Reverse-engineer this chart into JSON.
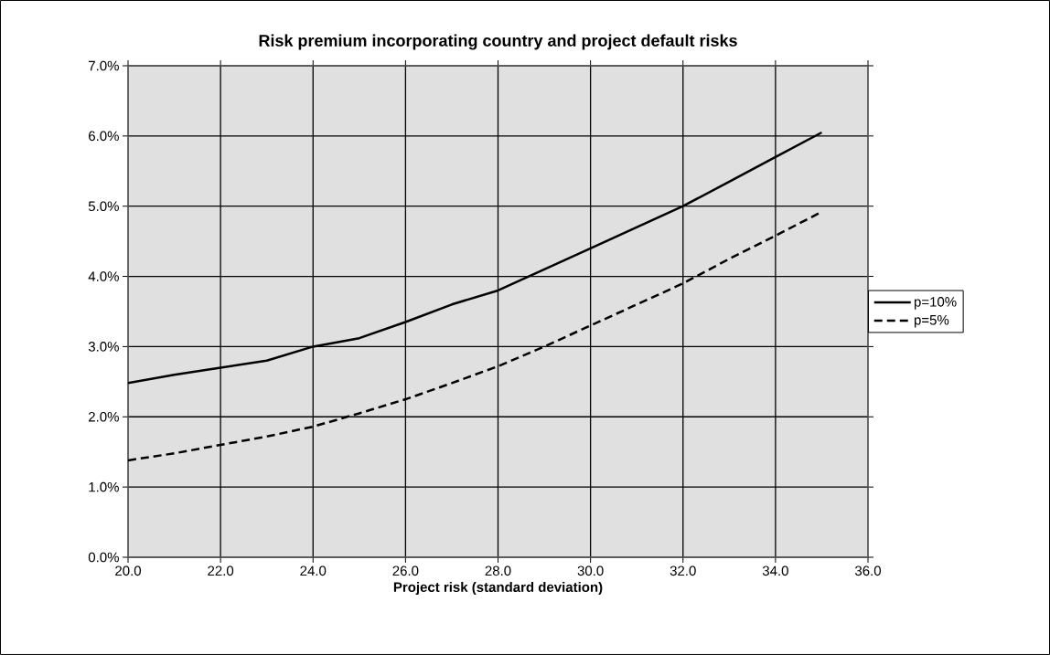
{
  "chart_data": {
    "type": "line",
    "title": "Risk premium incorporating country and project default risks",
    "xlabel": "Project risk (standard deviation)",
    "x": [
      20,
      21,
      22,
      23,
      24,
      25,
      26,
      27,
      28,
      29,
      30,
      31,
      32,
      33,
      34,
      35
    ],
    "series": [
      {
        "name": "p=10%",
        "color": "#000000",
        "line_style": "solid",
        "values": [
          2.48,
          2.6,
          2.7,
          2.8,
          3.0,
          3.12,
          3.35,
          3.6,
          3.8,
          4.1,
          4.4,
          4.7,
          5.0,
          5.35,
          5.7,
          6.05
        ]
      },
      {
        "name": "p=5%",
        "color": "#000000",
        "line_style": "dashed",
        "values": [
          1.38,
          1.48,
          1.6,
          1.72,
          1.86,
          2.05,
          2.25,
          2.48,
          2.72,
          3.0,
          3.3,
          3.6,
          3.9,
          4.25,
          4.58,
          4.92
        ]
      }
    ],
    "xlim": [
      20,
      36
    ],
    "xticks": [
      {
        "value": 20,
        "label": "20.0"
      },
      {
        "value": 22,
        "label": "22.0"
      },
      {
        "value": 24,
        "label": "24.0"
      },
      {
        "value": 26,
        "label": "26.0"
      },
      {
        "value": 28,
        "label": "28.0"
      },
      {
        "value": 30,
        "label": "30.0"
      },
      {
        "value": 32,
        "label": "32.0"
      },
      {
        "value": 34,
        "label": "34.0"
      },
      {
        "value": 36,
        "label": "36.0"
      }
    ],
    "ylim": [
      0,
      7
    ],
    "yticks": [
      {
        "value": 0,
        "label": "0.0%"
      },
      {
        "value": 1,
        "label": "1.0%"
      },
      {
        "value": 2,
        "label": "2.0%"
      },
      {
        "value": 3,
        "label": "3.0%"
      },
      {
        "value": 4,
        "label": "4.0%"
      },
      {
        "value": 5,
        "label": "5.0%"
      },
      {
        "value": 6,
        "label": "6.0%"
      },
      {
        "value": 7,
        "label": "7.0%"
      }
    ],
    "grid": true,
    "legend": "right",
    "marker": "none"
  }
}
